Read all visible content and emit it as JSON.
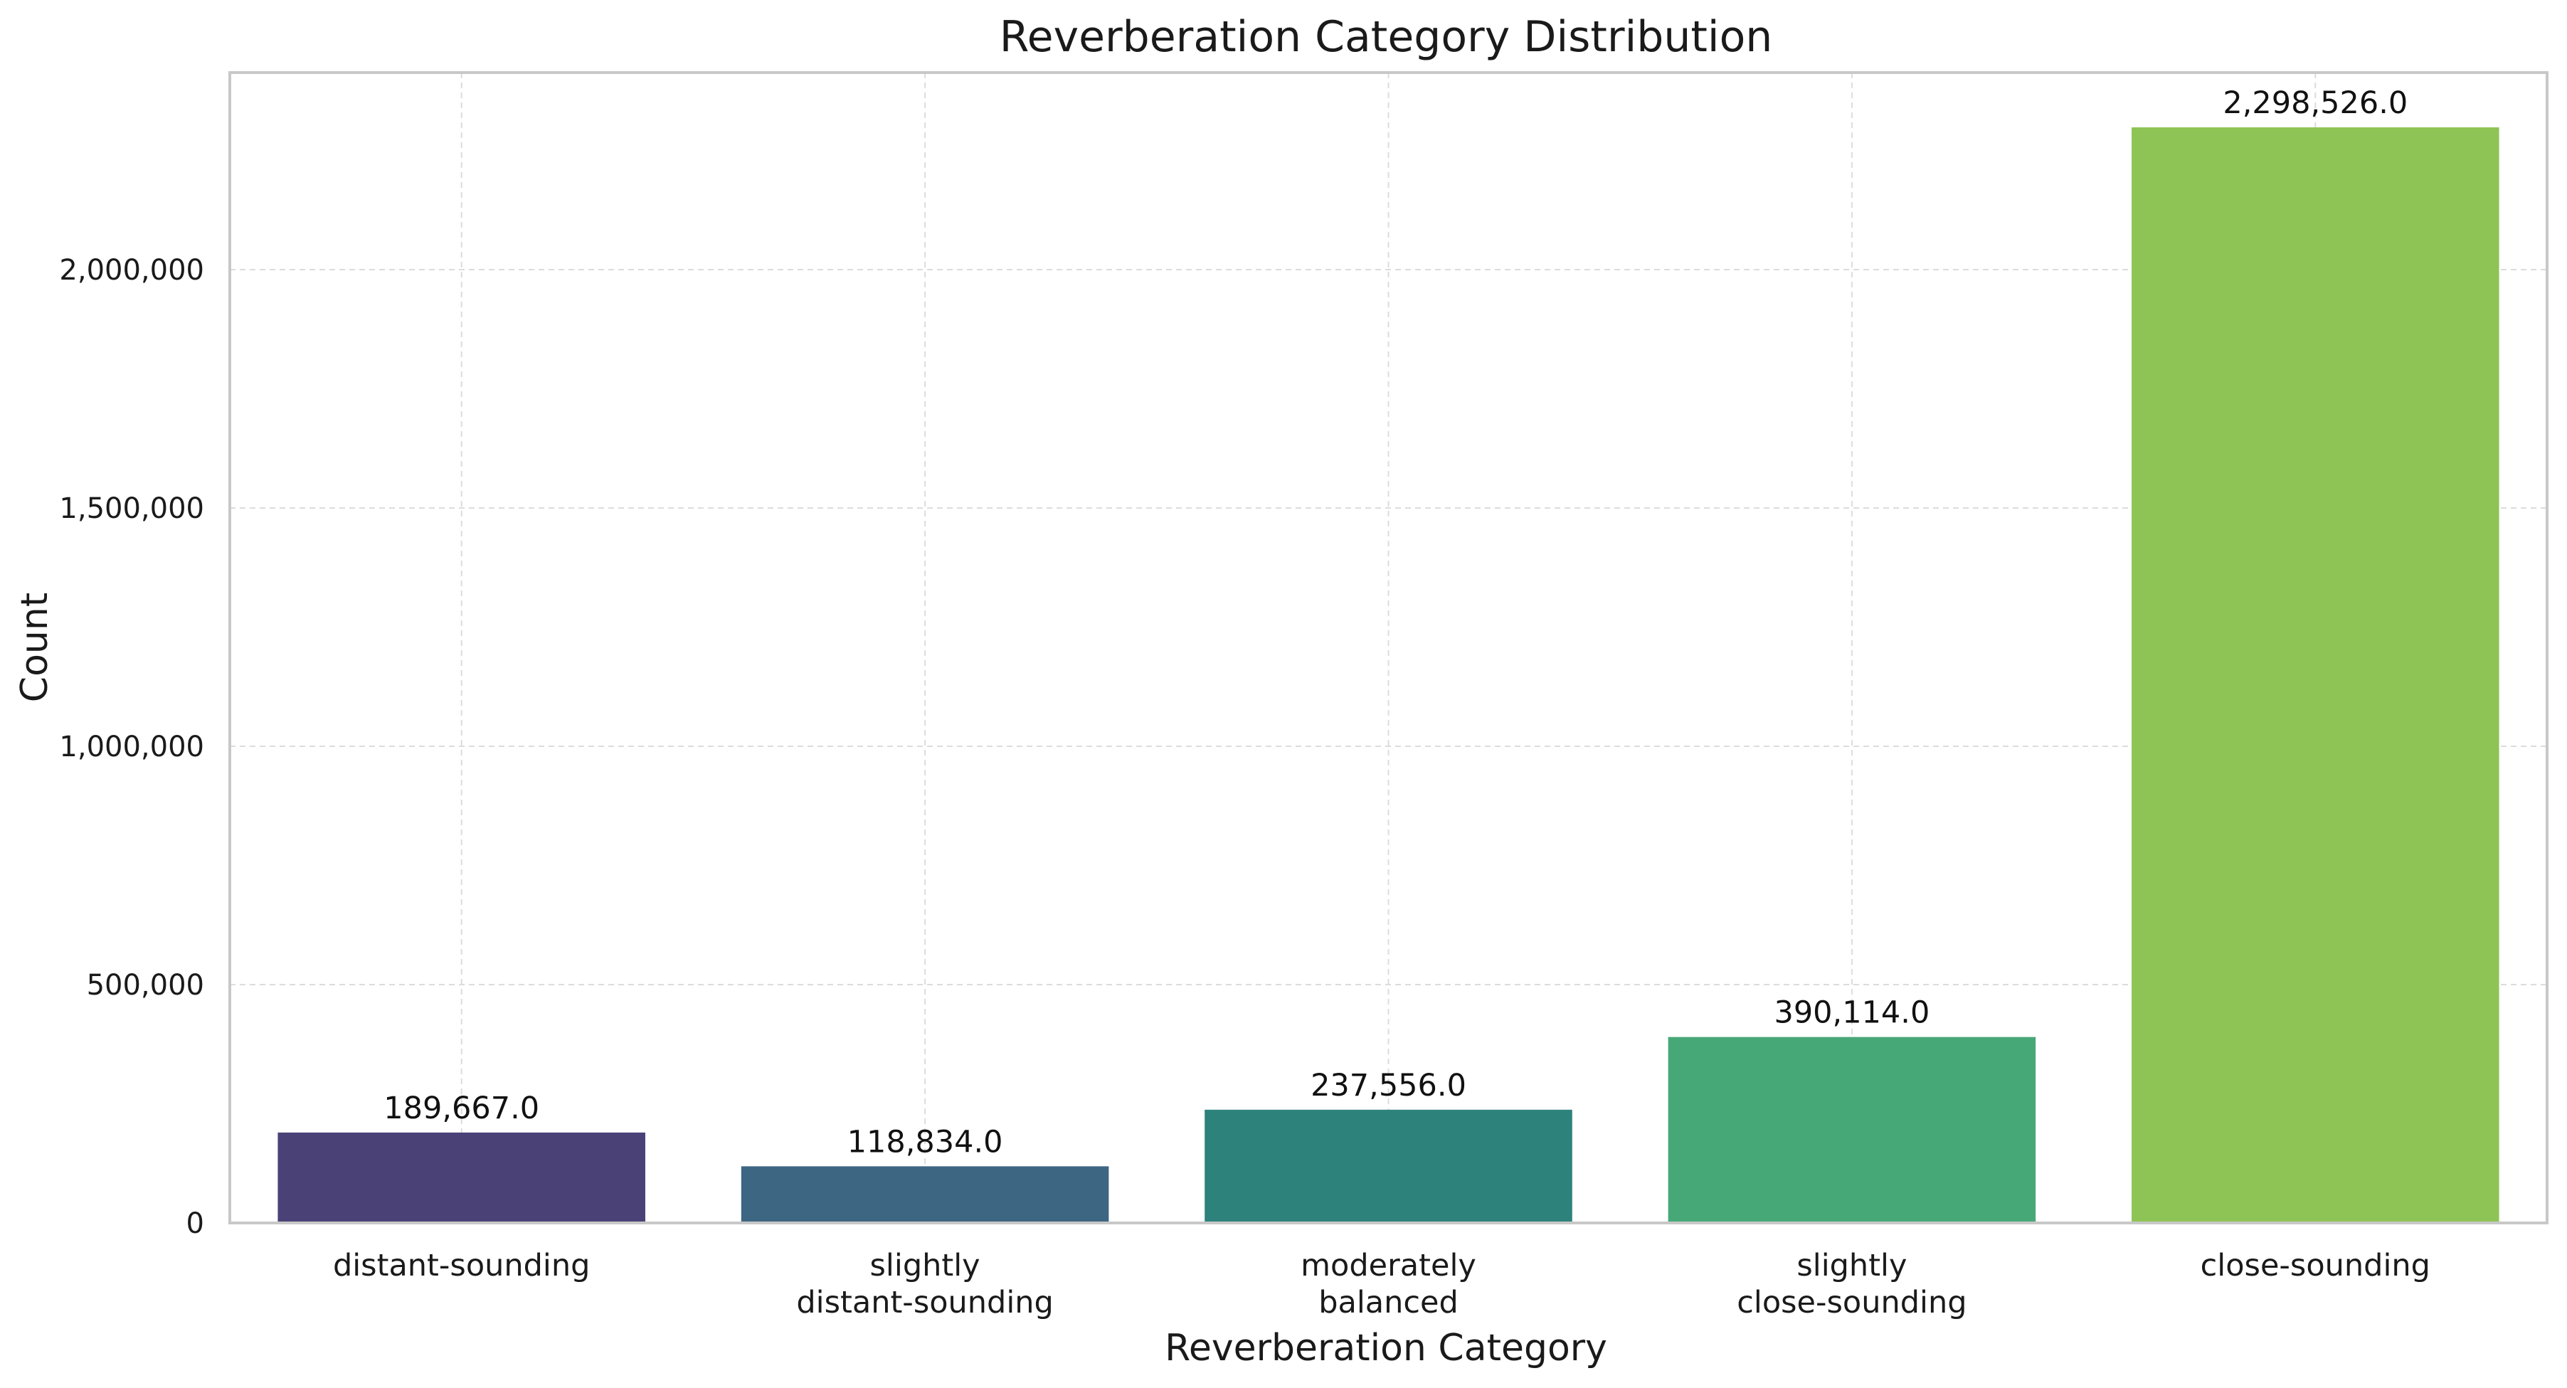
{
  "chart_data": {
    "type": "bar",
    "title": "Reverberation Category Distribution",
    "xlabel": "Reverberation Category",
    "ylabel": "Count",
    "categories": [
      [
        "distant-sounding"
      ],
      [
        "slightly",
        "distant-sounding"
      ],
      [
        "moderately",
        "balanced"
      ],
      [
        "slightly",
        "close-sounding"
      ],
      [
        "close-sounding"
      ]
    ],
    "values": [
      189667,
      118834,
      237556,
      390114,
      2298526
    ],
    "value_labels": [
      "189,667.0",
      "118,834.0",
      "237,556.0",
      "390,114.0",
      "2,298,526.0"
    ],
    "colors": [
      "#4a4277",
      "#3d6683",
      "#2e827c",
      "#47a877",
      "#8ec455"
    ],
    "yticks": [
      0,
      500000,
      1000000,
      1500000,
      2000000
    ],
    "ytick_labels": [
      "0",
      "500,000",
      "1,000,000",
      "1,500,000",
      "2,000,000"
    ],
    "ylim": [
      0,
      2413452
    ],
    "grid": true,
    "legend": "none"
  }
}
